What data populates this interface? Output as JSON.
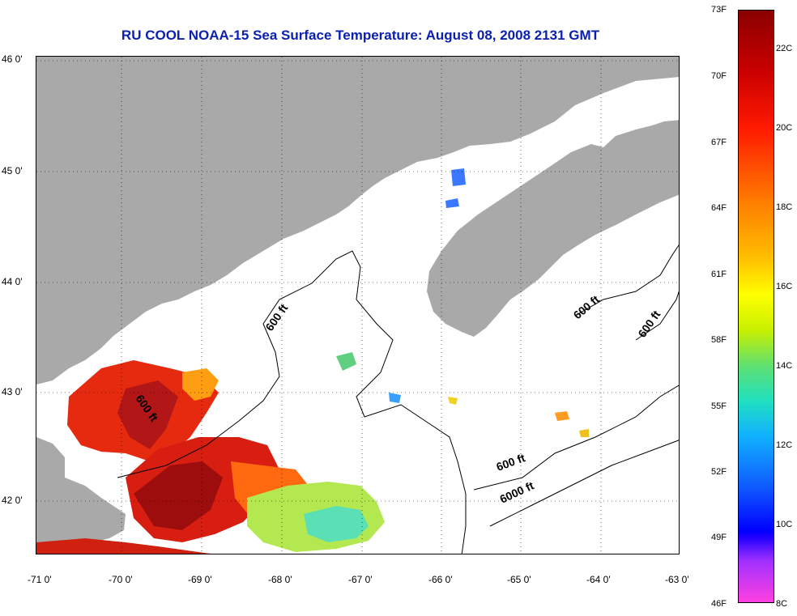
{
  "title": "RU COOL  NOAA-15  Sea Surface Temperature:  August 08, 2008 2131 GMT",
  "latitude_labels": [
    "46 0'",
    "45 0'",
    "44 0'",
    "43 0'",
    "42 0'"
  ],
  "longitude_labels": [
    "-71 0'",
    "-70 0'",
    "-69 0'",
    "-68 0'",
    "-67 0'",
    "-66 0'",
    "-65 0'",
    "-64 0'",
    "-63 0'"
  ],
  "contour_labels": [
    "600 ft",
    "600 ft",
    "600 ft",
    "600 ft",
    "600 ft",
    "6000 ft"
  ],
  "colorbar": {
    "fahrenheit": [
      "73F",
      "70F",
      "67F",
      "64F",
      "61F",
      "58F",
      "55F",
      "52F",
      "49F",
      "46F"
    ],
    "celsius": [
      "22C",
      "20C",
      "18C",
      "16C",
      "14C",
      "12C",
      "10C",
      "8C"
    ]
  },
  "colors": {
    "land": "#a9a9a9",
    "title": "#0a1fb4",
    "contour": "#000000"
  }
}
